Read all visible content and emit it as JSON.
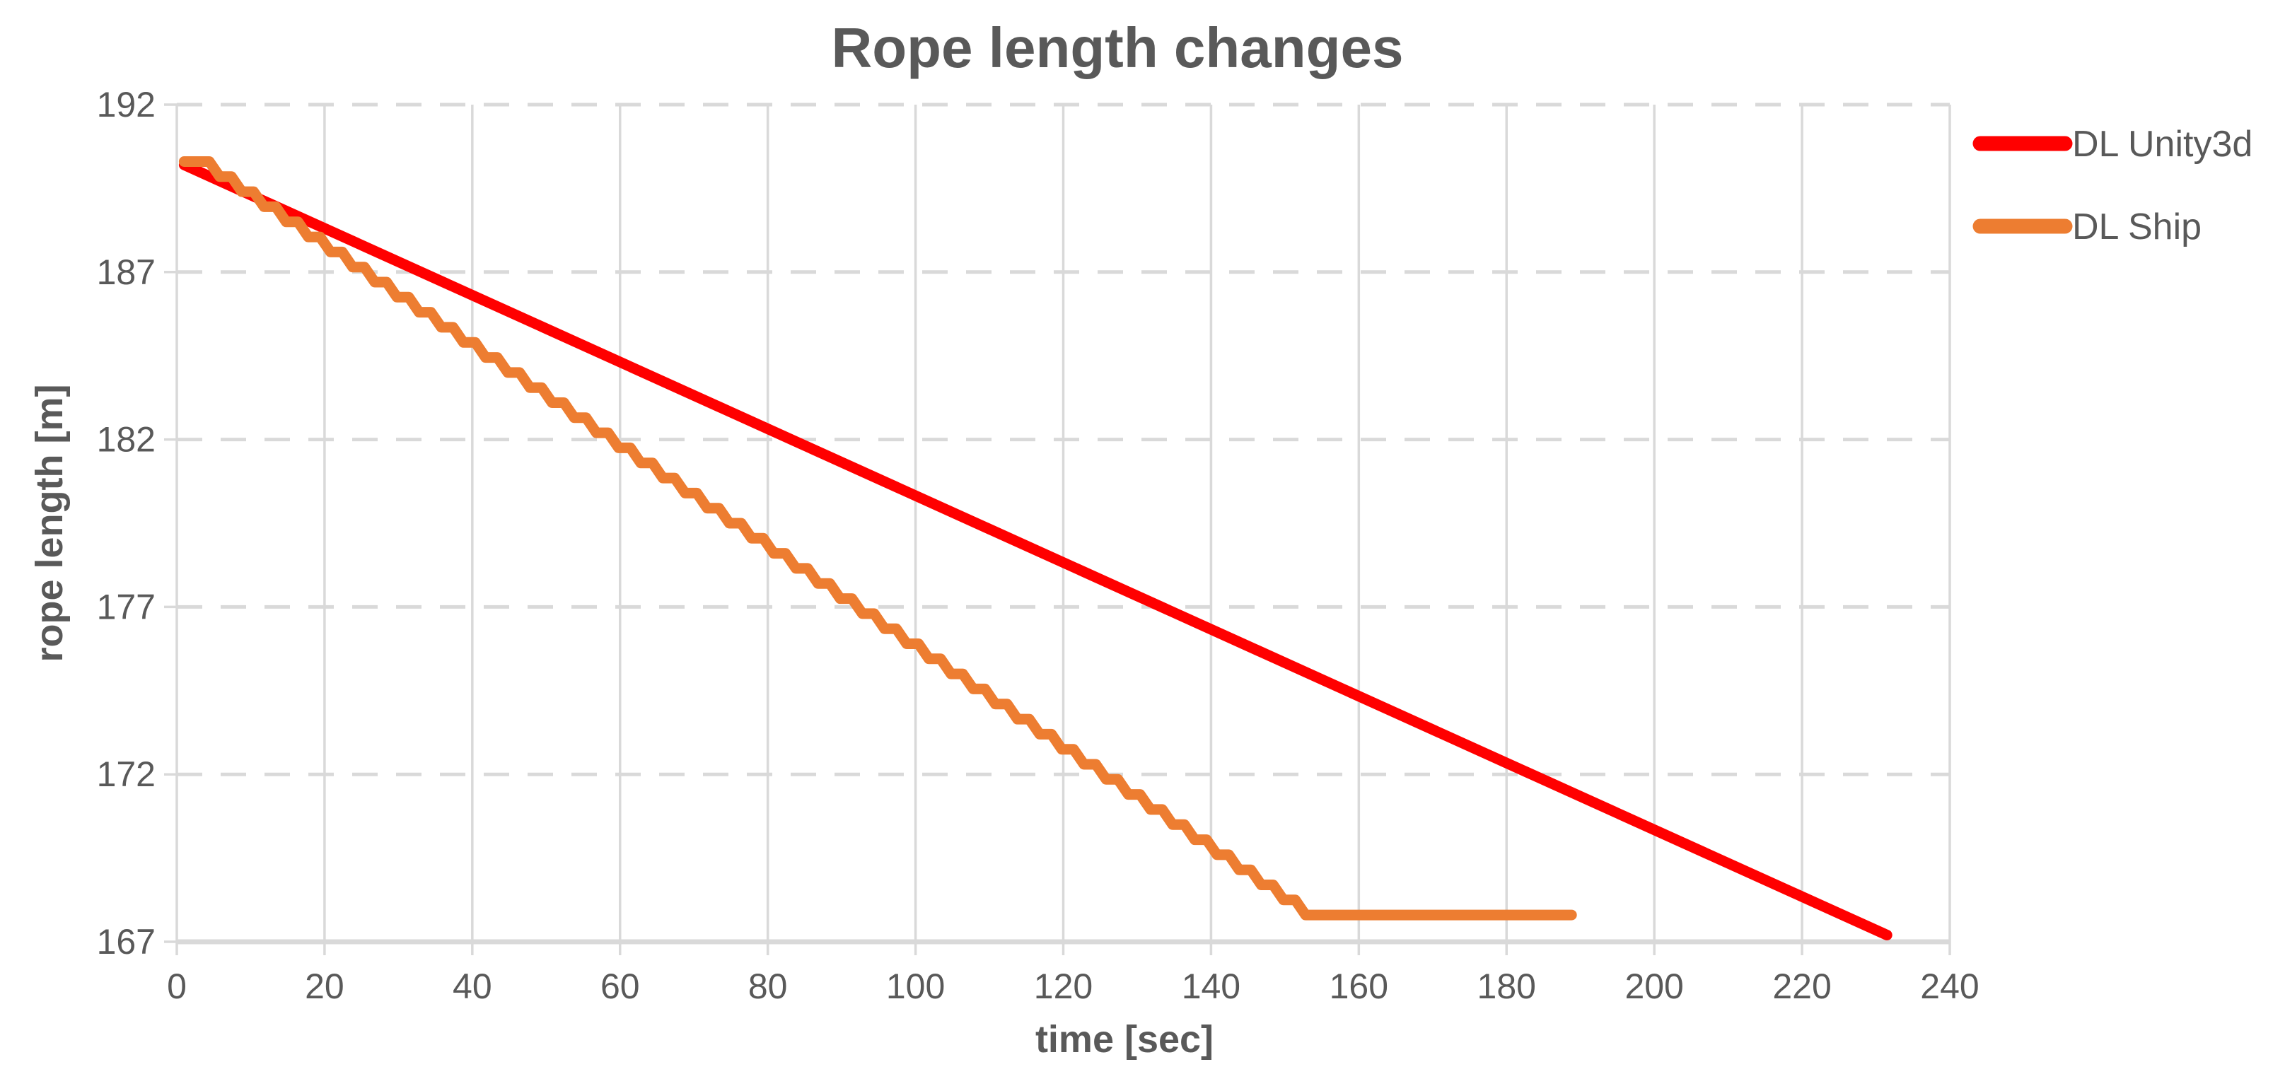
{
  "chart_data": {
    "type": "line",
    "title": "Rope length changes",
    "xlabel": "time [sec]",
    "ylabel": "rope length [m]",
    "xlim": [
      0,
      240
    ],
    "xtick_step": 20,
    "x_tick_labels": [
      "0",
      "20",
      "40",
      "60",
      "80",
      "100",
      "120",
      "140",
      "160",
      "180",
      "200",
      "220",
      "240"
    ],
    "ylim": [
      167,
      192
    ],
    "ytick_step": 5,
    "y_tick_labels": [
      "167",
      "172",
      "177",
      "182",
      "187",
      "192"
    ],
    "grid": true,
    "legend_position": "right",
    "colors": {
      "dl_unity3d": "#FF0000",
      "dl_ship": "#ED7D31",
      "text": "#595959",
      "gridline": "#D9D9D9"
    },
    "series": [
      {
        "name": "DL Unity3d",
        "color": "#FF0000",
        "points": [
          [
            1,
            190.2
          ],
          [
            231.5,
            167.2
          ]
        ]
      },
      {
        "name": "DL Ship",
        "color": "#ED7D31",
        "points": [
          [
            1,
            190.3
          ],
          [
            4.4,
            190.3
          ],
          [
            5.8,
            189.85
          ],
          [
            7.4,
            189.85
          ],
          [
            8.8,
            189.4
          ],
          [
            10.4,
            189.4
          ],
          [
            11.8,
            188.95
          ],
          [
            13.4,
            188.95
          ],
          [
            14.8,
            188.5
          ],
          [
            16.4,
            188.5
          ],
          [
            17.8,
            188.05
          ],
          [
            19.4,
            188.05
          ],
          [
            20.8,
            187.6
          ],
          [
            22.4,
            187.6
          ],
          [
            23.8,
            187.15
          ],
          [
            25.4,
            187.15
          ],
          [
            26.8,
            186.7
          ],
          [
            28.4,
            186.7
          ],
          [
            29.8,
            186.25
          ],
          [
            31.4,
            186.25
          ],
          [
            32.8,
            185.8
          ],
          [
            34.4,
            185.8
          ],
          [
            35.8,
            185.35
          ],
          [
            37.4,
            185.35
          ],
          [
            38.8,
            184.9
          ],
          [
            40.4,
            184.9
          ],
          [
            41.8,
            184.45
          ],
          [
            43.4,
            184.45
          ],
          [
            44.8,
            184.0
          ],
          [
            46.4,
            184.0
          ],
          [
            47.8,
            183.55
          ],
          [
            49.4,
            183.55
          ],
          [
            50.8,
            183.1
          ],
          [
            52.4,
            183.1
          ],
          [
            53.8,
            182.65
          ],
          [
            55.4,
            182.65
          ],
          [
            56.8,
            182.2
          ],
          [
            58.4,
            182.2
          ],
          [
            59.8,
            181.75
          ],
          [
            61.4,
            181.75
          ],
          [
            62.8,
            181.3
          ],
          [
            64.4,
            181.3
          ],
          [
            65.8,
            180.85
          ],
          [
            67.4,
            180.85
          ],
          [
            68.8,
            180.4
          ],
          [
            70.4,
            180.4
          ],
          [
            71.8,
            179.95
          ],
          [
            73.4,
            179.95
          ],
          [
            74.8,
            179.5
          ],
          [
            76.4,
            179.5
          ],
          [
            77.8,
            179.05
          ],
          [
            79.4,
            179.05
          ],
          [
            80.8,
            178.6
          ],
          [
            82.4,
            178.6
          ],
          [
            83.8,
            178.15
          ],
          [
            85.4,
            178.15
          ],
          [
            86.8,
            177.7
          ],
          [
            88.4,
            177.7
          ],
          [
            89.8,
            177.25
          ],
          [
            91.4,
            177.25
          ],
          [
            92.8,
            176.8
          ],
          [
            94.4,
            176.8
          ],
          [
            95.8,
            176.35
          ],
          [
            97.4,
            176.35
          ],
          [
            98.8,
            175.9
          ],
          [
            100.4,
            175.9
          ],
          [
            101.8,
            175.45
          ],
          [
            103.4,
            175.45
          ],
          [
            104.8,
            175.0
          ],
          [
            106.4,
            175.0
          ],
          [
            107.8,
            174.55
          ],
          [
            109.4,
            174.55
          ],
          [
            110.8,
            174.1
          ],
          [
            112.4,
            174.1
          ],
          [
            113.8,
            173.65
          ],
          [
            115.4,
            173.65
          ],
          [
            116.8,
            173.2
          ],
          [
            118.4,
            173.2
          ],
          [
            119.8,
            172.75
          ],
          [
            121.4,
            172.75
          ],
          [
            122.8,
            172.3
          ],
          [
            124.4,
            172.3
          ],
          [
            125.8,
            171.85
          ],
          [
            127.4,
            171.85
          ],
          [
            128.8,
            171.4
          ],
          [
            130.4,
            171.4
          ],
          [
            131.8,
            170.95
          ],
          [
            133.4,
            170.95
          ],
          [
            134.8,
            170.5
          ],
          [
            136.4,
            170.5
          ],
          [
            137.8,
            170.05
          ],
          [
            139.4,
            170.05
          ],
          [
            140.8,
            169.6
          ],
          [
            142.4,
            169.6
          ],
          [
            143.8,
            169.15
          ],
          [
            145.4,
            169.15
          ],
          [
            146.8,
            168.7
          ],
          [
            148.4,
            168.7
          ],
          [
            149.8,
            168.25
          ],
          [
            151.4,
            168.25
          ],
          [
            152.8,
            167.8
          ],
          [
            188.8,
            167.8
          ]
        ]
      }
    ]
  }
}
